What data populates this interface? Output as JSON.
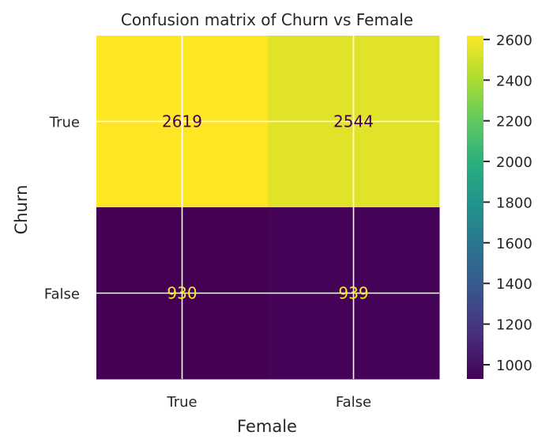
{
  "chart_data": {
    "type": "heatmap",
    "title": "Confusion matrix of Churn vs Female",
    "xlabel": "Female",
    "ylabel": "Churn",
    "x_categories": [
      "True",
      "False"
    ],
    "y_categories": [
      "True",
      "False"
    ],
    "values": [
      [
        2619,
        2544
      ],
      [
        930,
        939
      ]
    ],
    "colormap": "viridis",
    "colorbar": {
      "min": 930,
      "max": 2619,
      "ticks": [
        1000,
        1200,
        1400,
        1600,
        1800,
        2000,
        2200,
        2400,
        2600
      ]
    },
    "grid": true,
    "label_color_dark": "#440154",
    "label_color_light": "#fde725"
  }
}
